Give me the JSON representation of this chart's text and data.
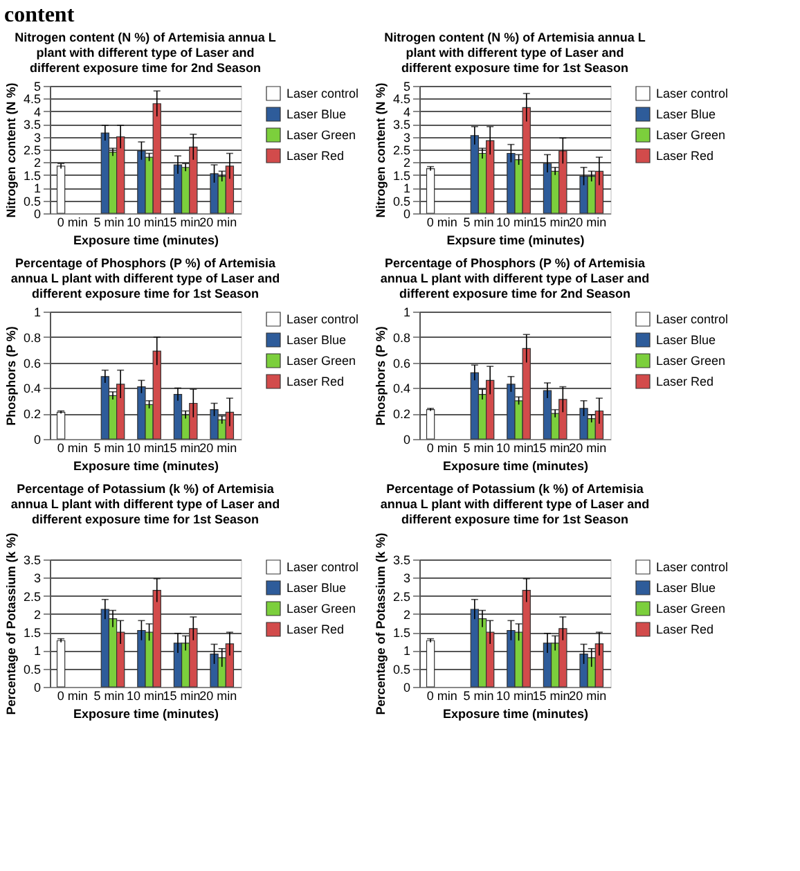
{
  "chart_data": [
    {
      "type": "bar",
      "title": "Nitrogen content (N %) of Artemisia annua L plant with different type of Laser and different exposure time for 2nd Season",
      "annotations": [
        "content"
      ],
      "xlabel": "Exposure time (minutes)",
      "ylabel": "Nitrogen content (N %)",
      "categories": [
        "0 min",
        "5 min",
        "10 min",
        "15 min",
        "20 min"
      ],
      "ylim": [
        0,
        5
      ],
      "yticks": [
        0,
        0.5,
        1,
        1.5,
        2,
        2.5,
        3,
        3.5,
        4,
        4.5,
        5
      ],
      "grid": "y",
      "legend": "right",
      "series": [
        {
          "name": "Laser control",
          "color": "#ffffff",
          "values": [
            1.85,
            null,
            null,
            null,
            null
          ],
          "errors": [
            0.1,
            null,
            null,
            null,
            null
          ]
        },
        {
          "name": "Laser Blue",
          "color": "#2e5c9a",
          "values": [
            null,
            3.15,
            2.45,
            1.9,
            1.55
          ],
          "errors": [
            null,
            0.3,
            0.35,
            0.35,
            0.35
          ]
        },
        {
          "name": "Laser Green",
          "color": "#7ccf3c",
          "values": [
            null,
            2.4,
            2.2,
            1.8,
            1.45
          ],
          "errors": [
            null,
            0.15,
            0.15,
            0.15,
            0.2
          ]
        },
        {
          "name": "Laser Red",
          "color": "#d24b4b",
          "values": [
            null,
            3.0,
            4.3,
            2.6,
            1.85
          ],
          "errors": [
            null,
            0.45,
            0.5,
            0.5,
            0.5
          ]
        }
      ]
    },
    {
      "type": "bar",
      "title": "Nitrogen content (N %) of Artemisia annua L plant with different type of Laser and different exposure time for 1st Season",
      "xlabel": "Expsure time (minutes)",
      "ylabel": "Nitrogen content (N %)",
      "categories": [
        "0 min",
        "5 min",
        "10 min",
        "15 min",
        "20 min"
      ],
      "ylim": [
        0,
        5
      ],
      "yticks": [
        0,
        0.5,
        1,
        1.5,
        2,
        2.5,
        3,
        3.5,
        4,
        4.5,
        5
      ],
      "grid": "y",
      "legend": "right",
      "series": [
        {
          "name": "Laser control",
          "color": "#ffffff",
          "values": [
            1.75,
            null,
            null,
            null,
            null
          ],
          "errors": [
            0.08,
            null,
            null,
            null,
            null
          ]
        },
        {
          "name": "Laser Blue",
          "color": "#2e5c9a",
          "values": [
            null,
            3.05,
            2.35,
            1.95,
            1.45
          ],
          "errors": [
            null,
            0.35,
            0.35,
            0.35,
            0.35
          ]
        },
        {
          "name": "Laser Green",
          "color": "#7ccf3c",
          "values": [
            null,
            2.35,
            2.1,
            1.65,
            1.45
          ],
          "errors": [
            null,
            0.2,
            0.2,
            0.15,
            0.2
          ]
        },
        {
          "name": "Laser Red",
          "color": "#d24b4b",
          "values": [
            null,
            2.85,
            4.15,
            2.45,
            1.65
          ],
          "errors": [
            null,
            0.55,
            0.55,
            0.5,
            0.55
          ]
        }
      ]
    },
    {
      "type": "bar",
      "title": "Percentage of Phosphors (P %) of Artemisia annua L plant with different type of Laser and different exposure time for 1st Season",
      "xlabel": "Exposure time (minutes)",
      "ylabel": "Phosphors (P %)",
      "categories": [
        "0 min",
        "5 min",
        "10 min",
        "15 min",
        "20 min"
      ],
      "ylim": [
        0,
        1
      ],
      "yticks": [
        0,
        0.2,
        0.4,
        0.6,
        0.8,
        1
      ],
      "grid": "y",
      "legend": "right",
      "series": [
        {
          "name": "Laser control",
          "color": "#ffffff",
          "values": [
            0.21,
            null,
            null,
            null,
            null
          ],
          "errors": [
            0.01,
            null,
            null,
            null,
            null
          ]
        },
        {
          "name": "Laser Blue",
          "color": "#2e5c9a",
          "values": [
            null,
            0.49,
            0.41,
            0.35,
            0.23
          ],
          "errors": [
            null,
            0.05,
            0.05,
            0.05,
            0.05
          ]
        },
        {
          "name": "Laser Green",
          "color": "#7ccf3c",
          "values": [
            null,
            0.34,
            0.27,
            0.19,
            0.15
          ],
          "errors": [
            null,
            0.03,
            0.03,
            0.03,
            0.03
          ]
        },
        {
          "name": "Laser Red",
          "color": "#d24b4b",
          "values": [
            null,
            0.43,
            0.69,
            0.28,
            0.21
          ],
          "errors": [
            null,
            0.11,
            0.11,
            0.11,
            0.11
          ]
        }
      ]
    },
    {
      "type": "bar",
      "title": "Percentage of Phosphors (P %) of Artemisia annua L plant with different type of Laser and different exposure time for 2nd Season",
      "xlabel": "Exposure time (minutes)",
      "ylabel": "Phosphors (P %)",
      "categories": [
        "0 min",
        "5 min",
        "10 min",
        "15 min",
        "20 min"
      ],
      "ylim": [
        0,
        1
      ],
      "yticks": [
        0,
        0.2,
        0.4,
        0.6,
        0.8,
        1
      ],
      "grid": "y",
      "legend": "right",
      "series": [
        {
          "name": "Laser control",
          "color": "#ffffff",
          "values": [
            0.23,
            null,
            null,
            null,
            null
          ],
          "errors": [
            0.01,
            null,
            null,
            null,
            null
          ]
        },
        {
          "name": "Laser Blue",
          "color": "#2e5c9a",
          "values": [
            null,
            0.52,
            0.43,
            0.38,
            0.24
          ],
          "errors": [
            null,
            0.06,
            0.06,
            0.06,
            0.06
          ]
        },
        {
          "name": "Laser Green",
          "color": "#7ccf3c",
          "values": [
            null,
            0.35,
            0.3,
            0.2,
            0.16
          ],
          "errors": [
            null,
            0.04,
            0.03,
            0.03,
            0.03
          ]
        },
        {
          "name": "Laser Red",
          "color": "#d24b4b",
          "values": [
            null,
            0.46,
            0.71,
            0.31,
            0.22
          ],
          "errors": [
            null,
            0.11,
            0.11,
            0.1,
            0.1
          ]
        }
      ]
    },
    {
      "type": "bar",
      "title": "Percentage of Potassium (k %) of Artemisia annua L plant with different type of Laser and different exposure time for 1st Season",
      "xlabel": "Exposure time (minutes)",
      "ylabel": "Percentage of Potassium (k %)",
      "categories": [
        "0 min",
        "5 min",
        "10 min",
        "15 min",
        "20 min"
      ],
      "ylim": [
        0,
        3.5
      ],
      "yticks": [
        0,
        0.5,
        1,
        1.5,
        2,
        2.5,
        3,
        3.5
      ],
      "grid": "y",
      "legend": "right",
      "series": [
        {
          "name": "Laser control",
          "color": "#ffffff",
          "values": [
            1.27,
            null,
            null,
            null,
            null
          ],
          "errors": [
            0.05,
            null,
            null,
            null,
            null
          ]
        },
        {
          "name": "Laser Blue",
          "color": "#2e5c9a",
          "values": [
            null,
            2.13,
            1.55,
            1.2,
            0.9
          ],
          "errors": [
            null,
            0.27,
            0.27,
            0.27,
            0.27
          ]
        },
        {
          "name": "Laser Green",
          "color": "#7ccf3c",
          "values": [
            null,
            1.87,
            1.5,
            1.2,
            0.8
          ],
          "errors": [
            null,
            0.23,
            0.23,
            0.2,
            0.25
          ]
        },
        {
          "name": "Laser Red",
          "color": "#d24b4b",
          "values": [
            null,
            1.5,
            2.65,
            1.6,
            1.18
          ],
          "errors": [
            null,
            0.32,
            0.32,
            0.32,
            0.32
          ]
        }
      ]
    },
    {
      "type": "bar",
      "title": "Percentage of Potassium (k %) of Artemisia annua L plant with different type of Laser and different exposure time for 1st Season",
      "xlabel": "Exposure time (minutes)",
      "ylabel": "Percentage of Potassium (k %)",
      "categories": [
        "0 min",
        "5 min",
        "10 min",
        "15 min",
        "20 min"
      ],
      "ylim": [
        0,
        3.5
      ],
      "yticks": [
        0,
        0.5,
        1,
        1.5,
        2,
        2.5,
        3,
        3.5
      ],
      "grid": "y",
      "legend": "right",
      "series": [
        {
          "name": "Laser control",
          "color": "#ffffff",
          "values": [
            1.27,
            null,
            null,
            null,
            null
          ],
          "errors": [
            0.05,
            null,
            null,
            null,
            null
          ]
        },
        {
          "name": "Laser Blue",
          "color": "#2e5c9a",
          "values": [
            null,
            2.13,
            1.55,
            1.2,
            0.9
          ],
          "errors": [
            null,
            0.27,
            0.27,
            0.27,
            0.27
          ]
        },
        {
          "name": "Laser Green",
          "color": "#7ccf3c",
          "values": [
            null,
            1.87,
            1.5,
            1.2,
            0.8
          ],
          "errors": [
            null,
            0.23,
            0.23,
            0.2,
            0.25
          ]
        },
        {
          "name": "Laser Red",
          "color": "#d24b4b",
          "values": [
            null,
            1.5,
            2.65,
            1.6,
            1.18
          ],
          "errors": [
            null,
            0.32,
            0.32,
            0.32,
            0.32
          ]
        }
      ]
    }
  ]
}
